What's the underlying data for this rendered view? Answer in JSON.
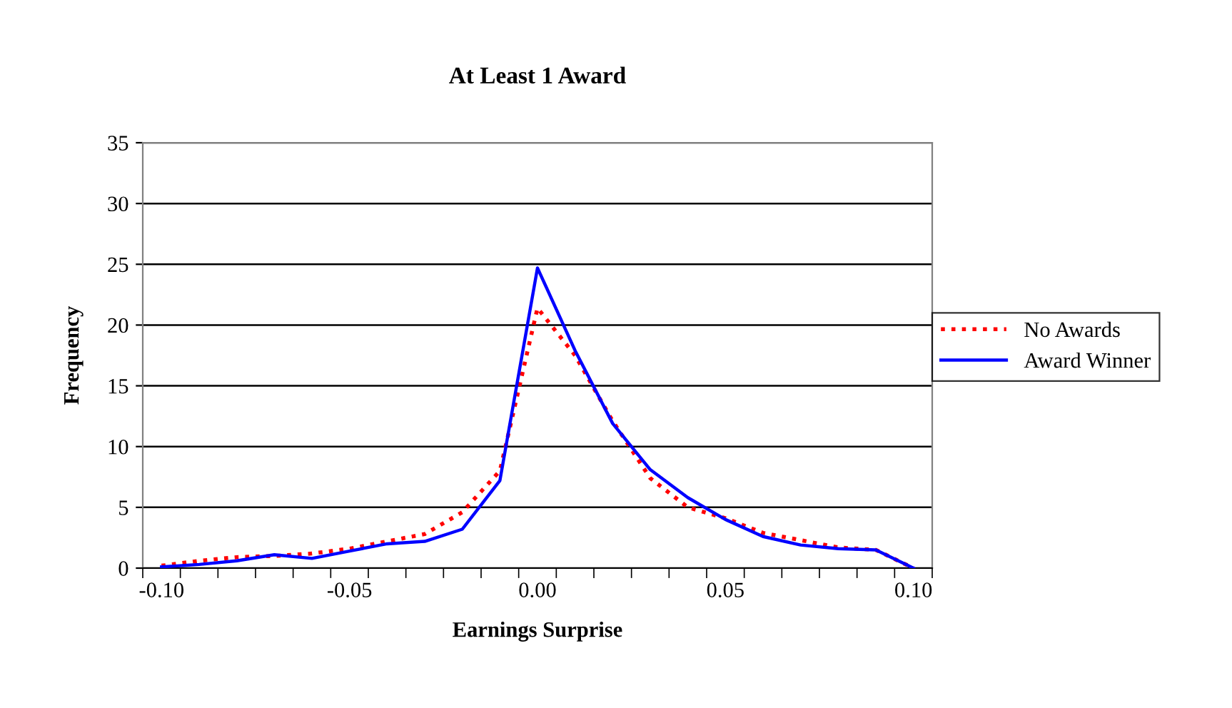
{
  "chart_data": {
    "type": "line",
    "title": "At Least 1 Award",
    "xlabel": "Earnings Surprise",
    "ylabel": "Frequency",
    "categories": [
      "-0.10",
      null,
      null,
      null,
      null,
      "-0.05",
      null,
      null,
      null,
      null,
      "0.00",
      null,
      null,
      null,
      null,
      "0.05",
      null,
      null,
      null,
      null,
      "0.10"
    ],
    "series": [
      {
        "name": "No Awards",
        "color": "#ff0000",
        "line_style": "dotted",
        "values": [
          0.2,
          0.6,
          0.9,
          1.0,
          1.2,
          1.6,
          2.2,
          2.8,
          4.6,
          8.0,
          21.4,
          17.5,
          12.1,
          7.4,
          5.0,
          4.1,
          2.9,
          2.3,
          1.7,
          1.5,
          0
        ]
      },
      {
        "name": "Award Winner",
        "color": "#0000ff",
        "line_style": "solid",
        "values": [
          0.1,
          0.3,
          0.6,
          1.1,
          0.8,
          1.4,
          2.0,
          2.2,
          3.2,
          7.2,
          24.7,
          17.9,
          11.9,
          8.1,
          5.8,
          4.0,
          2.6,
          1.9,
          1.6,
          1.5,
          0
        ]
      }
    ],
    "ylim": [
      0,
      35
    ],
    "yticks": [
      0,
      5,
      10,
      15,
      20,
      25,
      30,
      35
    ],
    "grid": "y",
    "legend": "right",
    "marker": "none"
  }
}
